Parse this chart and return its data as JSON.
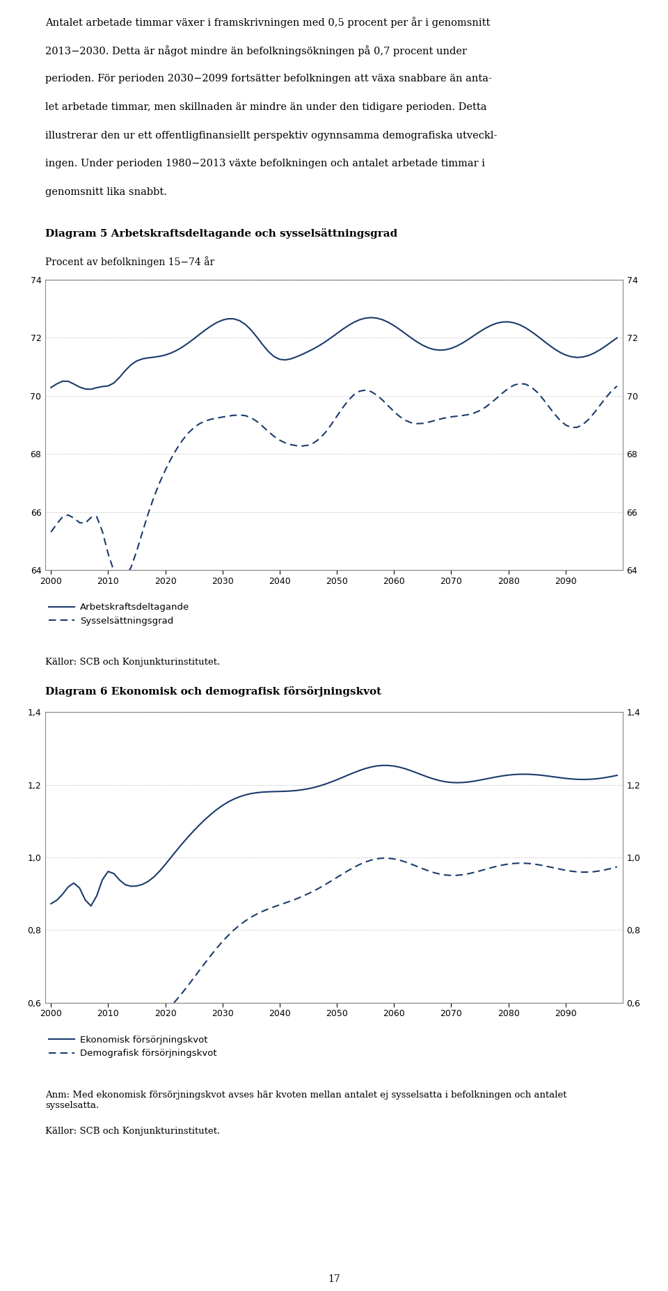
{
  "text_block_lines": [
    "Antalet arbetade timmar växer i framskrivningen med 0,5 procent per år i genomsnitt",
    "2013−2030. Detta är något mindre än befolkningsökningen på 0,7 procent under",
    "perioden. För perioden 2030−2099 fortsätter befolkningen att växa snabbare än anta-",
    "let arbetade timmar, men skillnaden är mindre än under den tidigare perioden. Detta",
    "illustrerar den ur ett offentligfinansiellt perspektiv ogynnsamma demografiska utveckl-",
    "ingen. Under perioden 1980−2013 växte befolkningen och antalet arbetade timmar i",
    "genomsnitt lika snabbt."
  ],
  "diagram5_title": "Diagram 5 Arbetskraftsdeltagande och sysselsättningsgrad",
  "diagram5_subtitle": "Procent av befolkningen 15−74 år",
  "diagram5_ylim": [
    64,
    74
  ],
  "diagram5_yticks": [
    64,
    66,
    68,
    70,
    72,
    74
  ],
  "diagram5_xticks": [
    2000,
    2010,
    2020,
    2030,
    2040,
    2050,
    2060,
    2070,
    2080,
    2090
  ],
  "diagram5_legend1": "Arbetskraftsdeltagande",
  "diagram5_legend2": "Sysselsättningsgrad",
  "diagram6_title": "Diagram 6 Ekonomisk och demografisk försörjningskvot",
  "diagram6_ylim": [
    0.6,
    1.4
  ],
  "diagram6_yticks": [
    0.6,
    0.8,
    1.0,
    1.2,
    1.4
  ],
  "diagram6_xticks": [
    2000,
    2010,
    2020,
    2030,
    2040,
    2050,
    2060,
    2070,
    2080,
    2090
  ],
  "diagram6_legend1": "Ekonomisk försörjningskvot",
  "diagram6_legend2": "Demografisk försörjningskvot",
  "source1": "Källor: SCB och Konjunkturinstitutet.",
  "source2": "Källor: SCB och Konjunkturinstitutet.",
  "anm": "Anm: Med ekonomisk försörjningskvot avses här kvoten mellan antalet ej sysselsatta i befolkningen och antalet\nsysselsatta.",
  "page_num": "17",
  "line_color": "#1a3a6b",
  "grid_color": "#bbbbbb",
  "background_color": "#ffffff",
  "spine_color": "#888888"
}
